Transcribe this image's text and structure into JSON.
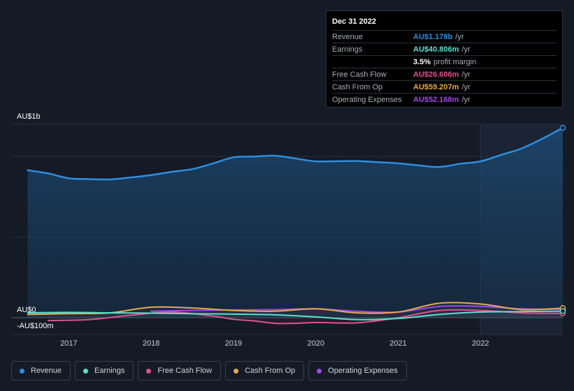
{
  "tooltip": {
    "date": "Dec 31 2022",
    "rows": [
      {
        "label": "Revenue",
        "value": "AU$1.178b",
        "unit": "/yr",
        "color": "#2f8ede"
      },
      {
        "label": "Earnings",
        "value": "AU$40.806m",
        "unit": "/yr",
        "color": "#5ae0cf"
      },
      {
        "label": "",
        "value": "3.5%",
        "unit": "profit margin",
        "color": "#ffffff"
      },
      {
        "label": "Free Cash Flow",
        "value": "AU$26.606m",
        "unit": "/yr",
        "color": "#e0528e"
      },
      {
        "label": "Cash From Op",
        "value": "AU$59.207m",
        "unit": "/yr",
        "color": "#e8a94f"
      },
      {
        "label": "Operating Expenses",
        "value": "AU$52.168m",
        "unit": "/yr",
        "color": "#a049e8"
      }
    ]
  },
  "legend": [
    {
      "label": "Revenue",
      "color": "#2f8ede"
    },
    {
      "label": "Earnings",
      "color": "#5ae0cf"
    },
    {
      "label": "Free Cash Flow",
      "color": "#e0528e"
    },
    {
      "label": "Cash From Op",
      "color": "#e8a94f"
    },
    {
      "label": "Operating Expenses",
      "color": "#a049e8"
    }
  ],
  "chart_data": {
    "type": "line",
    "y_unit": "AU$ millions",
    "ylim": [
      -100,
      1200
    ],
    "y_tick_labels": [
      {
        "value": 1200,
        "label": "AU$1b"
      },
      {
        "value": 0,
        "label": "AU$0"
      },
      {
        "value": -100,
        "label": "-AU$100m"
      }
    ],
    "x_range": [
      2016.3,
      2023.0
    ],
    "x_ticks": [
      2017,
      2018,
      2019,
      2020,
      2021,
      2022
    ],
    "highlight_from": 2022.0,
    "series": [
      {
        "name": "Revenue",
        "color": "#2f8ede",
        "fill": true,
        "points": [
          [
            2016.5,
            915
          ],
          [
            2016.75,
            895
          ],
          [
            2017.0,
            865
          ],
          [
            2017.25,
            860
          ],
          [
            2017.5,
            858
          ],
          [
            2017.75,
            870
          ],
          [
            2018.0,
            885
          ],
          [
            2018.25,
            905
          ],
          [
            2018.5,
            922
          ],
          [
            2018.75,
            957
          ],
          [
            2019.0,
            995
          ],
          [
            2019.25,
            1000
          ],
          [
            2019.5,
            1005
          ],
          [
            2019.75,
            988
          ],
          [
            2020.0,
            970
          ],
          [
            2020.25,
            971
          ],
          [
            2020.5,
            972
          ],
          [
            2020.75,
            965
          ],
          [
            2021.0,
            958
          ],
          [
            2021.25,
            945
          ],
          [
            2021.5,
            935
          ],
          [
            2021.75,
            955
          ],
          [
            2022.0,
            970
          ],
          [
            2022.25,
            1010
          ],
          [
            2022.5,
            1050
          ],
          [
            2022.75,
            1110
          ],
          [
            2023.0,
            1178
          ]
        ]
      },
      {
        "name": "Earnings",
        "color": "#5ae0cf",
        "fill": false,
        "points": [
          [
            2016.5,
            30
          ],
          [
            2017.0,
            33
          ],
          [
            2017.5,
            30
          ],
          [
            2018.0,
            28
          ],
          [
            2018.5,
            25
          ],
          [
            2019.0,
            22
          ],
          [
            2019.5,
            18
          ],
          [
            2020.0,
            5
          ],
          [
            2020.5,
            -12
          ],
          [
            2021.0,
            -5
          ],
          [
            2021.5,
            20
          ],
          [
            2022.0,
            35
          ],
          [
            2022.5,
            38
          ],
          [
            2023.0,
            40.8
          ]
        ]
      },
      {
        "name": "Free Cash Flow",
        "color": "#e0528e",
        "fill": false,
        "points": [
          [
            2016.75,
            -18
          ],
          [
            2017.25,
            -12
          ],
          [
            2017.75,
            15
          ],
          [
            2018.25,
            35
          ],
          [
            2018.75,
            10
          ],
          [
            2019.0,
            -10
          ],
          [
            2019.25,
            -20
          ],
          [
            2019.5,
            -35
          ],
          [
            2019.75,
            -35
          ],
          [
            2020.0,
            -30
          ],
          [
            2020.5,
            -32
          ],
          [
            2021.0,
            0
          ],
          [
            2021.5,
            45
          ],
          [
            2022.0,
            45
          ],
          [
            2022.5,
            30
          ],
          [
            2023.0,
            26.6
          ]
        ]
      },
      {
        "name": "Cash From Op",
        "color": "#e8a94f",
        "fill": false,
        "points": [
          [
            2016.5,
            20
          ],
          [
            2017.0,
            25
          ],
          [
            2017.5,
            30
          ],
          [
            2018.0,
            65
          ],
          [
            2018.5,
            60
          ],
          [
            2019.0,
            45
          ],
          [
            2019.5,
            40
          ],
          [
            2020.0,
            55
          ],
          [
            2020.5,
            30
          ],
          [
            2021.0,
            35
          ],
          [
            2021.5,
            90
          ],
          [
            2022.0,
            85
          ],
          [
            2022.5,
            50
          ],
          [
            2023.0,
            59.2
          ]
        ]
      },
      {
        "name": "Operating Expenses",
        "color": "#a049e8",
        "fill": false,
        "points": [
          [
            2018.0,
            40
          ],
          [
            2018.5,
            45
          ],
          [
            2019.0,
            48
          ],
          [
            2019.5,
            50
          ],
          [
            2020.0,
            55
          ],
          [
            2020.5,
            40
          ],
          [
            2021.0,
            35
          ],
          [
            2021.5,
            70
          ],
          [
            2022.0,
            70
          ],
          [
            2022.5,
            55
          ],
          [
            2023.0,
            52.2
          ]
        ]
      }
    ]
  }
}
